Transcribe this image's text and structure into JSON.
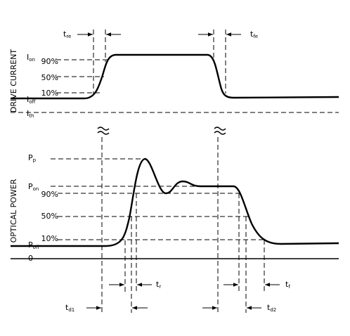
{
  "drive_current": {
    "axis_label": "DRIVE CURRENT",
    "i_on": {
      "main": "I",
      "sub": "on"
    },
    "pct_90": "90%",
    "pct_50": "50%",
    "pct_10": "10%",
    "i_off": {
      "main": "I",
      "sub": "off"
    },
    "i_th": {
      "main": "I",
      "sub": "th"
    },
    "t_re": {
      "main": "t",
      "sub": "re"
    },
    "t_fe": {
      "main": "t",
      "sub": "fe"
    }
  },
  "optical_power": {
    "axis_label": "OPTICAL POWER",
    "p_p": {
      "main": "P",
      "sub": "p"
    },
    "p_on": {
      "main": "P",
      "sub": "on"
    },
    "pct_90": "90%",
    "pct_50": "50%",
    "pct_10": "10%",
    "p_off": {
      "main": "P",
      "sub": "off"
    },
    "zero": "0",
    "t_r": {
      "main": "t",
      "sub": "r"
    },
    "t_f": {
      "main": "t",
      "sub": "f"
    },
    "t_d1": {
      "main": "t",
      "sub": "d1"
    },
    "t_d2": {
      "main": "t",
      "sub": "d2"
    }
  }
}
